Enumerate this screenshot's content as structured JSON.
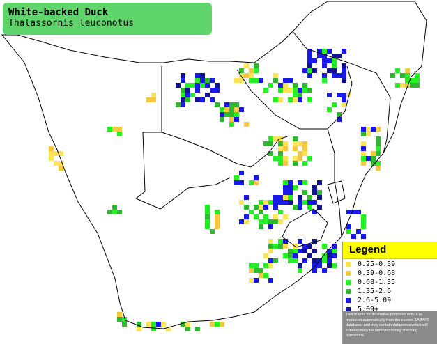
{
  "title": {
    "common_name": "White-backed Duck",
    "scientific_name": "Thalassornis leuconotus"
  },
  "legend": {
    "heading": "Legend",
    "items": [
      {
        "label": "0.25-0.39",
        "color": "#ffe45a"
      },
      {
        "label": "0.39-0.68",
        "color": "#f5c842"
      },
      {
        "label": "0.68-1.35",
        "color": "#25ee25"
      },
      {
        "label": "1.35-2.6",
        "color": "#30b830"
      },
      {
        "label": "2.6-5.09",
        "color": "#1a1ae6"
      },
      {
        "label": "5.09+",
        "color": "#12128f"
      }
    ],
    "disclaimer": "This map is for illustrative purposes only; it is produced automatically from the current SABAP2 database, and may contain datapoints which will subsequently be removed during checking operations."
  },
  "colors": {
    "title_box": "#5fd46a",
    "legend_header": "#ffff00",
    "disclaimer_bg": "#8a8a8a",
    "boundary_line": "#000000"
  }
}
